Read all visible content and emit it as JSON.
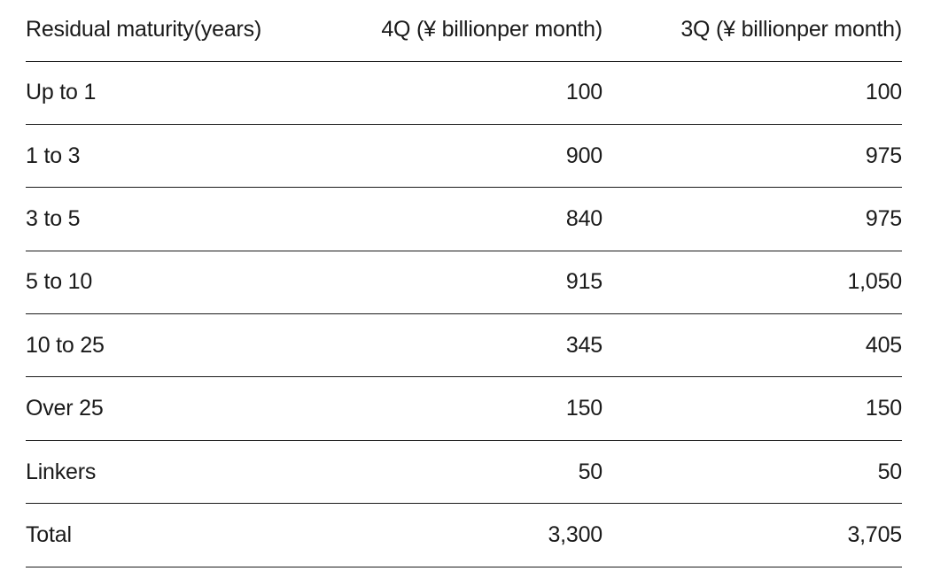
{
  "table": {
    "headers": [
      "Residual maturity(years)",
      "4Q (¥ billionper month)",
      "3Q (¥ billionper month)"
    ],
    "rows": [
      [
        "Up to 1",
        "100",
        "100"
      ],
      [
        "1 to 3",
        "900",
        "975"
      ],
      [
        "3 to 5",
        "840",
        "975"
      ],
      [
        "5 to 10",
        "915",
        "1,050"
      ],
      [
        "10 to 25",
        "345",
        "405"
      ],
      [
        "Over 25",
        "150",
        "150"
      ],
      [
        "Linkers",
        "50",
        "50"
      ],
      [
        "Total",
        "3,300",
        "3,705"
      ]
    ]
  }
}
